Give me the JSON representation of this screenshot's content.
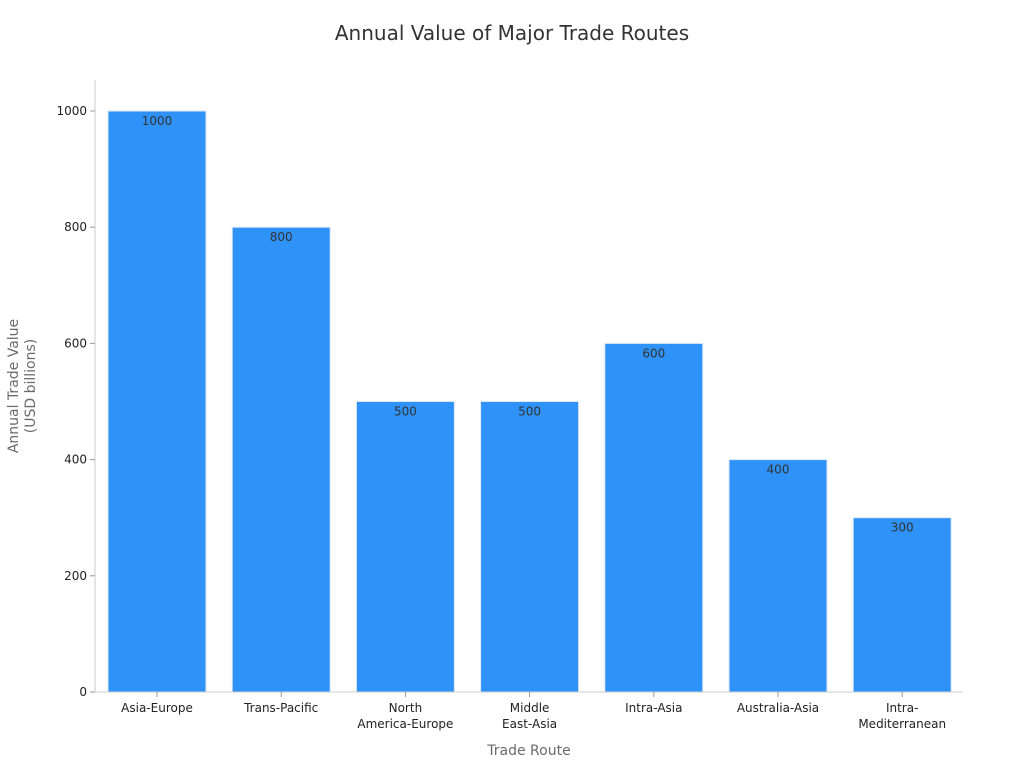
{
  "chart_data": {
    "type": "bar",
    "title": "Annual Value of Major Trade Routes",
    "xlabel": "Trade Route",
    "ylabel": [
      "Annual Trade Value",
      "(USD billions)"
    ],
    "categories": [
      [
        "Asia-Europe"
      ],
      [
        "Trans-Pacific"
      ],
      [
        "North",
        "America-Europe"
      ],
      [
        "Middle",
        "East-Asia"
      ],
      [
        "Intra-Asia"
      ],
      [
        "Australia-Asia"
      ],
      [
        "Intra-",
        "Mediterranean"
      ]
    ],
    "values": [
      1000,
      800,
      500,
      500,
      600,
      400,
      300
    ],
    "data_labels": [
      "1000",
      "800",
      "500",
      "500",
      "600",
      "400",
      "300"
    ],
    "yticks": [
      0,
      200,
      400,
      600,
      800,
      1000
    ],
    "ylim": [
      0,
      1055
    ],
    "grid": false,
    "legend": "none",
    "bar_color": "#2e92f8"
  }
}
